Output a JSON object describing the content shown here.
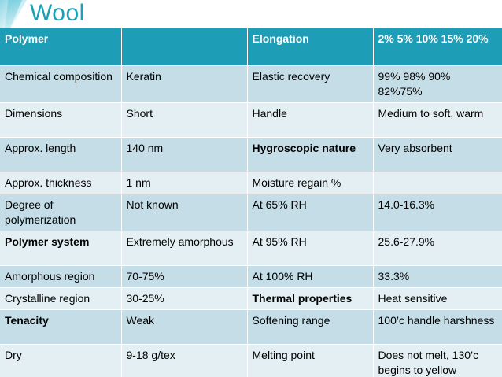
{
  "slide": {
    "title": "Wool"
  },
  "table": {
    "header": [
      "Polymer",
      "",
      "Elongation",
      "2% 5% 10% 15% 20%"
    ],
    "rows": [
      [
        "Chemical composition",
        "Keratin",
        "Elastic recovery",
        "99% 98% 90% 82%75%"
      ],
      [
        "Dimensions",
        "Short",
        "Handle",
        "Medium to soft, warm"
      ],
      [
        "Approx. length",
        "140 nm",
        "Hygroscopic nature",
        "Very absorbent"
      ],
      [
        "Approx. thickness",
        "1 nm",
        "Moisture regain %",
        ""
      ],
      [
        "Degree of polymerization",
        "Not known",
        "At 65% RH",
        "14.0-16.3%"
      ],
      [
        "Polymer system",
        "Extremely amorphous",
        "At 95% RH",
        "25.6-27.9%"
      ],
      [
        "Amorphous region",
        "70-75%",
        "At 100% RH",
        "33.3%"
      ],
      [
        "Crystalline region",
        "30-25%",
        "Thermal properties",
        "Heat sensitive"
      ],
      [
        "Tenacity",
        "Weak",
        "Softening range",
        "100’c handle harshness"
      ],
      [
        "Dry",
        "9-18 g/tex",
        "Melting point",
        "Does not melt, 130’c begins to yellow"
      ]
    ]
  },
  "colors": {
    "title": "#1aa1b8",
    "header_bg": "#1e9eb6",
    "row_dark": "#c4dde6",
    "row_light": "#e3eff3"
  }
}
